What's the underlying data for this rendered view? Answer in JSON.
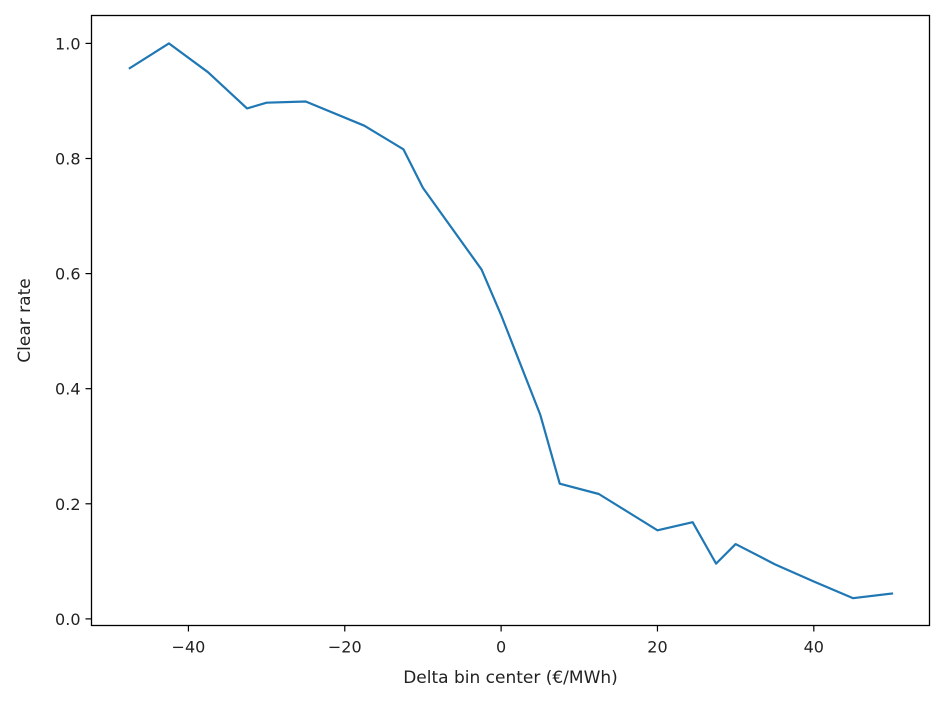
{
  "chart_data": {
    "type": "line",
    "title": "",
    "xlabel": "Delta bin center (€/MWh)",
    "ylabel": "Clear rate",
    "xlim": [
      -52.4,
      54.8
    ],
    "ylim": [
      -0.0115,
      1.0485
    ],
    "xticks": [
      -40,
      -20,
      0,
      20,
      40
    ],
    "xtick_labels": [
      "−40",
      "−20",
      "0",
      "20",
      "40"
    ],
    "yticks": [
      0.0,
      0.2,
      0.4,
      0.6,
      0.8,
      1.0
    ],
    "ytick_labels": [
      "0.0",
      "0.2",
      "0.4",
      "0.6",
      "0.8",
      "1.0"
    ],
    "grid": false,
    "legend": "none",
    "series": [
      {
        "color": "#1f77b4",
        "x": [
          -47.5,
          -42.5,
          -37.5,
          -32.5,
          -30,
          -25,
          -17.5,
          -12.5,
          -10,
          -2.5,
          0,
          5,
          7.5,
          12.5,
          20,
          24.5,
          27.5,
          30,
          35,
          40,
          45,
          50
        ],
        "y": [
          0.957,
          1.0,
          0.95,
          0.887,
          0.897,
          0.899,
          0.857,
          0.816,
          0.749,
          0.607,
          0.528,
          0.355,
          0.235,
          0.217,
          0.154,
          0.168,
          0.096,
          0.13,
          0.095,
          0.065,
          0.036,
          0.044
        ]
      }
    ]
  }
}
